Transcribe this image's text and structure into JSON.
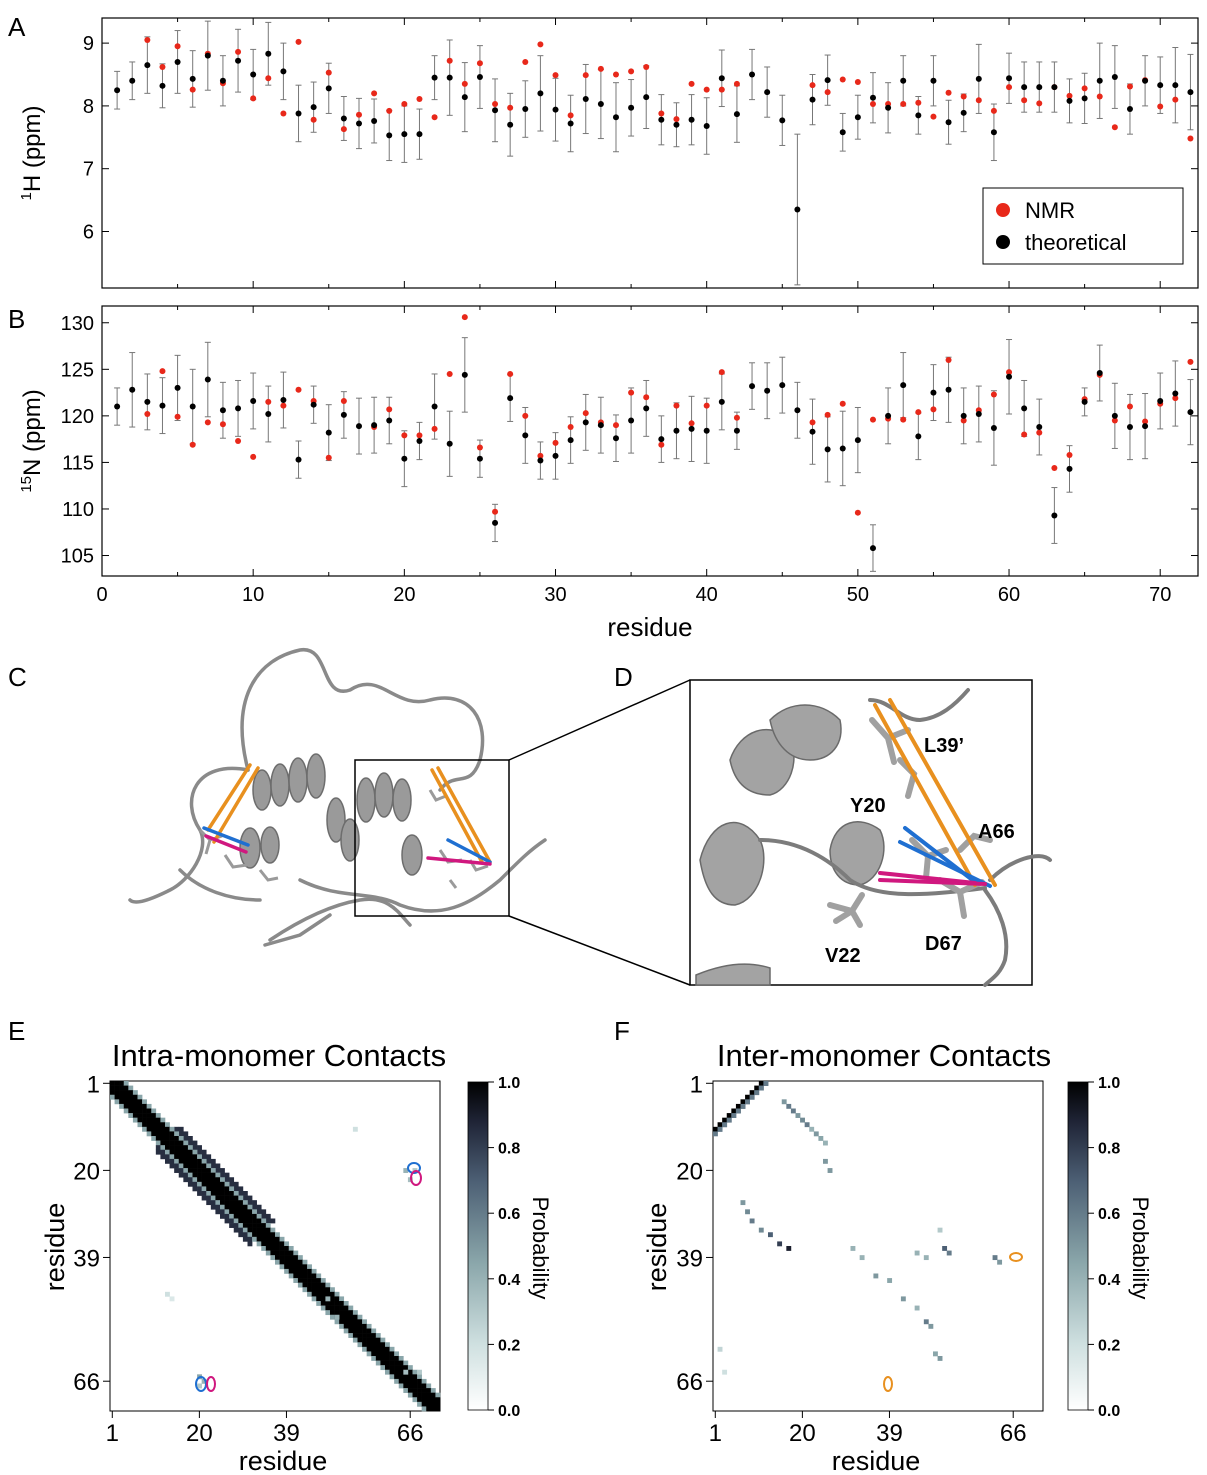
{
  "panels": {
    "A": {
      "letter": "A"
    },
    "B": {
      "letter": "B"
    },
    "C": {
      "letter": "C"
    },
    "D": {
      "letter": "D"
    },
    "E": {
      "letter": "E",
      "title": "Intra-monomer Contacts"
    },
    "F": {
      "letter": "F",
      "title": "Inter-monomer Contacts"
    }
  },
  "colors": {
    "nmr": "#e8281a",
    "theoretical": "#000000",
    "errorbar": "#777777",
    "ribbon": "#8a8a8a",
    "contact_orange": "#e8901f",
    "contact_blue": "#1f6fd1",
    "contact_magenta": "#d0187f"
  },
  "structure_labels": {
    "l39": "L39’",
    "y20": "Y20",
    "a66": "A66",
    "v22": "V22",
    "d67": "D67"
  },
  "icons": [
    "protein-ribbon-icon",
    "zoom-box-icon"
  ],
  "chart_data": [
    {
      "panel": "A",
      "type": "scatter",
      "ylabel_prefix": "1",
      "ylabel": "H (ppm)",
      "xlim": [
        0,
        72.5
      ],
      "ylim": [
        5.1,
        9.4
      ],
      "yticks": [
        6,
        7,
        8,
        9
      ],
      "xticks": [
        0,
        10,
        20,
        30,
        40,
        50,
        60,
        70
      ],
      "legend": {
        "placement": "lower-right",
        "entries": [
          "NMR",
          "theoretical"
        ]
      },
      "series": [
        {
          "name": "NMR",
          "x": [
            1,
            2,
            3,
            4,
            5,
            6,
            7,
            8,
            9,
            10,
            11,
            12,
            13,
            14,
            15,
            16,
            17,
            18,
            19,
            20,
            21,
            22,
            23,
            24,
            25,
            26,
            27,
            28,
            29,
            30,
            31,
            32,
            33,
            34,
            35,
            36,
            37,
            38,
            39,
            40,
            41,
            42,
            43,
            44,
            45,
            46,
            47,
            48,
            49,
            50,
            51,
            52,
            53,
            54,
            55,
            56,
            57,
            58,
            59,
            60,
            61,
            62,
            63,
            64,
            65,
            66,
            67,
            68,
            69,
            70,
            71,
            72
          ],
          "y": [
            null,
            null,
            9.05,
            8.62,
            8.95,
            8.26,
            8.83,
            8.36,
            8.86,
            8.12,
            8.44,
            7.88,
            9.02,
            7.78,
            8.53,
            7.63,
            7.86,
            8.2,
            7.92,
            8.03,
            8.11,
            7.82,
            8.72,
            8.35,
            8.68,
            8.03,
            7.97,
            8.7,
            8.98,
            8.49,
            7.85,
            8.49,
            8.59,
            8.5,
            8.55,
            8.62,
            7.88,
            7.79,
            8.35,
            8.26,
            8.26,
            8.35,
            null,
            null,
            null,
            null,
            8.33,
            8.22,
            8.42,
            8.38,
            8.03,
            8.03,
            8.03,
            8.05,
            7.83,
            8.21,
            8.15,
            8.09,
            7.92,
            8.3,
            8.09,
            8.04,
            8.3,
            8.16,
            8.28,
            8.15,
            7.66,
            8.31,
            8.41,
            7.99,
            8.1,
            7.48
          ]
        },
        {
          "name": "theoretical",
          "x": [
            1,
            2,
            3,
            4,
            5,
            6,
            7,
            8,
            9,
            10,
            11,
            12,
            13,
            14,
            15,
            16,
            17,
            18,
            19,
            20,
            21,
            22,
            23,
            24,
            25,
            26,
            27,
            28,
            29,
            30,
            31,
            32,
            33,
            34,
            35,
            36,
            37,
            38,
            39,
            40,
            41,
            42,
            43,
            44,
            45,
            46,
            47,
            48,
            49,
            50,
            51,
            52,
            53,
            54,
            55,
            56,
            57,
            58,
            59,
            60,
            61,
            62,
            63,
            64,
            65,
            66,
            67,
            68,
            69,
            70,
            71,
            72
          ],
          "y": [
            8.25,
            8.4,
            8.65,
            8.32,
            8.7,
            8.43,
            8.8,
            8.4,
            8.72,
            8.5,
            8.83,
            8.55,
            7.88,
            7.98,
            8.28,
            7.8,
            7.72,
            7.76,
            7.53,
            7.55,
            7.55,
            8.45,
            8.45,
            8.14,
            8.46,
            7.93,
            7.7,
            7.95,
            8.2,
            7.94,
            7.72,
            8.11,
            8.03,
            7.82,
            7.97,
            8.14,
            7.78,
            7.7,
            7.78,
            7.68,
            8.44,
            7.87,
            8.5,
            8.22,
            7.77,
            6.35,
            8.1,
            8.41,
            7.58,
            7.82,
            8.13,
            7.97,
            8.4,
            7.85,
            8.4,
            7.74,
            7.89,
            8.43,
            7.58,
            8.44,
            8.3,
            8.3,
            8.3,
            8.08,
            8.12,
            8.4,
            8.46,
            7.95,
            8.4,
            8.33,
            8.33,
            8.22
          ]
        },
        {
          "name": "theoretical error",
          "x": [
            1,
            2,
            3,
            4,
            5,
            6,
            7,
            8,
            9,
            10,
            11,
            12,
            13,
            14,
            15,
            16,
            17,
            18,
            19,
            20,
            21,
            22,
            23,
            24,
            25,
            26,
            27,
            28,
            29,
            30,
            31,
            32,
            33,
            34,
            35,
            36,
            37,
            38,
            39,
            40,
            41,
            42,
            43,
            44,
            45,
            46,
            47,
            48,
            49,
            50,
            51,
            52,
            53,
            54,
            55,
            56,
            57,
            58,
            59,
            60,
            61,
            62,
            63,
            64,
            65,
            66,
            67,
            68,
            69,
            70,
            71,
            72
          ],
          "y": [
            0.3,
            0.3,
            0.45,
            0.35,
            0.5,
            0.45,
            0.55,
            0.4,
            0.5,
            0.4,
            0.5,
            0.45,
            0.45,
            0.4,
            0.4,
            0.35,
            0.4,
            0.35,
            0.4,
            0.45,
            0.4,
            0.35,
            0.6,
            0.55,
            0.5,
            0.5,
            0.5,
            0.45,
            0.6,
            0.5,
            0.45,
            0.55,
            0.55,
            0.55,
            0.45,
            0.5,
            0.4,
            0.35,
            0.4,
            0.45,
            0.45,
            0.45,
            0.4,
            0.4,
            0.4,
            1.2,
            0.4,
            0.4,
            0.3,
            0.35,
            0.4,
            0.4,
            0.4,
            0.3,
            0.4,
            0.35,
            0.3,
            0.55,
            0.45,
            0.4,
            0.4,
            0.4,
            0.4,
            0.35,
            0.4,
            0.6,
            0.5,
            0.4,
            0.4,
            0.45,
            0.6,
            0.6
          ]
        }
      ]
    },
    {
      "panel": "B",
      "type": "scatter",
      "ylabel_prefix": "15",
      "ylabel": "N (ppm)",
      "xlabel": "residue",
      "xlim": [
        0,
        72.5
      ],
      "ylim": [
        102.8,
        131.8
      ],
      "yticks": [
        105,
        110,
        115,
        120,
        125,
        130
      ],
      "xticks": [
        0,
        10,
        20,
        30,
        40,
        50,
        60,
        70
      ],
      "series": [
        {
          "name": "NMR",
          "x": [
            1,
            2,
            3,
            4,
            5,
            6,
            7,
            8,
            9,
            10,
            11,
            12,
            13,
            14,
            15,
            16,
            17,
            18,
            19,
            20,
            21,
            22,
            23,
            24,
            25,
            26,
            27,
            28,
            29,
            30,
            31,
            32,
            33,
            34,
            35,
            36,
            37,
            38,
            39,
            40,
            41,
            42,
            43,
            44,
            45,
            46,
            47,
            48,
            49,
            50,
            51,
            52,
            53,
            54,
            55,
            56,
            57,
            58,
            59,
            60,
            61,
            62,
            63,
            64,
            65,
            66,
            67,
            68,
            69,
            70,
            71,
            72
          ],
          "y": [
            null,
            null,
            120.2,
            124.8,
            119.9,
            116.9,
            119.3,
            119.1,
            117.3,
            115.6,
            121.5,
            121.1,
            122.8,
            121.6,
            115.5,
            121.6,
            null,
            118.8,
            120.7,
            117.9,
            117.9,
            118.6,
            124.5,
            130.6,
            116.6,
            109.7,
            124.5,
            120.0,
            115.7,
            117.1,
            118.8,
            120.3,
            119.3,
            119.0,
            122.5,
            122.0,
            116.9,
            121.1,
            119.2,
            121.1,
            124.7,
            119.8,
            null,
            null,
            null,
            null,
            119.3,
            120.1,
            121.3,
            109.6,
            119.6,
            119.7,
            119.6,
            120.4,
            120.7,
            126.0,
            119.5,
            120.6,
            122.3,
            124.7,
            118.0,
            118.2,
            114.4,
            115.8,
            121.8,
            124.4,
            119.5,
            121.0,
            119.4,
            121.3,
            121.9,
            125.8
          ]
        },
        {
          "name": "theoretical",
          "x": [
            1,
            2,
            3,
            4,
            5,
            6,
            7,
            8,
            9,
            10,
            11,
            12,
            13,
            14,
            15,
            16,
            17,
            18,
            19,
            20,
            21,
            22,
            23,
            24,
            25,
            26,
            27,
            28,
            29,
            30,
            31,
            32,
            33,
            34,
            35,
            36,
            37,
            38,
            39,
            40,
            41,
            42,
            43,
            44,
            45,
            46,
            47,
            48,
            49,
            50,
            51,
            52,
            53,
            54,
            55,
            56,
            57,
            58,
            59,
            60,
            61,
            62,
            63,
            64,
            65,
            66,
            67,
            68,
            69,
            70,
            71,
            72
          ],
          "y": [
            121.0,
            122.8,
            121.5,
            121.1,
            123.0,
            121.0,
            123.9,
            120.6,
            120.8,
            121.6,
            120.2,
            121.7,
            115.3,
            121.2,
            118.2,
            120.1,
            118.9,
            119.0,
            119.5,
            115.4,
            117.3,
            121.0,
            117.0,
            124.4,
            115.4,
            108.5,
            121.9,
            117.9,
            115.2,
            115.7,
            117.4,
            119.3,
            119.0,
            117.6,
            119.5,
            120.8,
            117.5,
            118.4,
            118.6,
            118.4,
            121.5,
            118.4,
            123.2,
            122.7,
            123.3,
            120.6,
            118.3,
            116.4,
            116.5,
            117.4,
            105.8,
            120.0,
            123.3,
            117.8,
            122.5,
            122.8,
            120.0,
            120.2,
            118.7,
            124.2,
            120.8,
            118.8,
            109.3,
            114.3,
            121.5,
            124.6,
            120.0,
            118.8,
            118.9,
            121.6,
            122.4,
            120.4
          ]
        },
        {
          "name": "theoretical error",
          "x": [
            1,
            2,
            3,
            4,
            5,
            6,
            7,
            8,
            9,
            10,
            11,
            12,
            13,
            14,
            15,
            16,
            17,
            18,
            19,
            20,
            21,
            22,
            23,
            24,
            25,
            26,
            27,
            28,
            29,
            30,
            31,
            32,
            33,
            34,
            35,
            36,
            37,
            38,
            39,
            40,
            41,
            42,
            43,
            44,
            45,
            46,
            47,
            48,
            49,
            50,
            51,
            52,
            53,
            54,
            55,
            56,
            57,
            58,
            59,
            60,
            61,
            62,
            63,
            64,
            65,
            66,
            67,
            68,
            69,
            70,
            71,
            72
          ],
          "y": [
            2.0,
            4.0,
            3.0,
            3.0,
            3.5,
            4.0,
            4.0,
            3.0,
            3.0,
            3.0,
            3.0,
            3.0,
            2.0,
            2.0,
            3.0,
            2.5,
            3.0,
            3.0,
            2.5,
            3.0,
            2.0,
            3.5,
            3.5,
            4.0,
            2.0,
            2.0,
            2.5,
            3.0,
            2.0,
            2.5,
            2.5,
            3.0,
            3.0,
            2.5,
            3.5,
            3.0,
            2.5,
            3.0,
            3.5,
            3.5,
            3.0,
            2.0,
            2.5,
            3.0,
            3.0,
            3.0,
            3.5,
            3.5,
            4.0,
            3.5,
            2.5,
            3.0,
            3.5,
            2.5,
            3.0,
            3.5,
            3.0,
            3.0,
            4.0,
            4.0,
            3.0,
            3.0,
            3.0,
            2.5,
            1.5,
            3.0,
            3.5,
            3.5,
            3.5,
            3.0,
            3.5,
            3.5
          ]
        }
      ]
    },
    {
      "panel": "E",
      "type": "heatmap",
      "title": "Intra-monomer Contacts",
      "xlabel": "residue",
      "ylabel": "residue",
      "ticks": [
        1,
        20,
        39,
        66
      ],
      "colorbar": {
        "label": "Probability",
        "ticks": [
          "0.0",
          "0.2",
          "0.4",
          "0.6",
          "0.8",
          "1.0"
        ]
      }
    },
    {
      "panel": "F",
      "type": "heatmap",
      "title": "Inter-monomer Contacts",
      "xlabel": "residue",
      "ylabel": "residue",
      "ticks": [
        1,
        20,
        39,
        66
      ],
      "colorbar": {
        "label": "Probability",
        "ticks": [
          "0.0",
          "0.2",
          "0.4",
          "0.6",
          "0.8",
          "1.0"
        ]
      }
    }
  ]
}
